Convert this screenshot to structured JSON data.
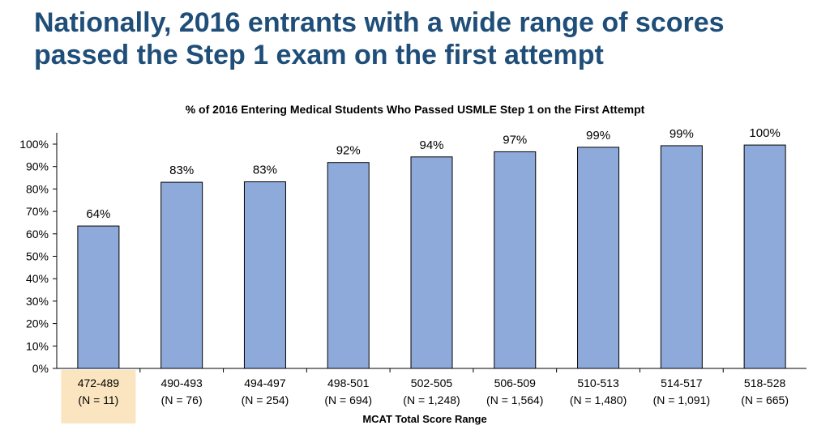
{
  "slide": {
    "headline_line1": "Nationally, 2016 entrants with a wide range of scores",
    "headline_line2": "passed the Step 1 exam on the first attempt"
  },
  "chart_data": {
    "type": "bar",
    "title": "% of 2016 Entering Medical Students Who Passed USMLE Step 1 on the First Attempt",
    "xlabel": "MCAT Total Score Range",
    "ylabel": "",
    "ylim": [
      0,
      100
    ],
    "yticks": [
      "0%",
      "10%",
      "20%",
      "30%",
      "40%",
      "50%",
      "60%",
      "70%",
      "80%",
      "90%",
      "100%"
    ],
    "categories": [
      "472-489",
      "490-493",
      "494-497",
      "498-501",
      "502-505",
      "506-509",
      "510-513",
      "514-517",
      "518-528"
    ],
    "counts": [
      "(N = 11)",
      "(N = 76)",
      "(N = 254)",
      "(N = 694)",
      "(N = 1,248)",
      "(N = 1,564)",
      "(N = 1,480)",
      "(N = 1,091)",
      "(N = 665)"
    ],
    "values": [
      63.5,
      83,
      83.2,
      91.8,
      94.3,
      96.6,
      98.6,
      99.3,
      99.6
    ],
    "data_labels": [
      "64%",
      "83%",
      "83%",
      "92%",
      "94%",
      "97%",
      "99%",
      "99%",
      "100%"
    ],
    "highlighted_category_index": 0,
    "grid": false,
    "colors": {
      "bar": "#8eaadb",
      "bar_border": "#000000",
      "highlight_bg": "#fbe5c0",
      "highlight_text": "#8a7a55",
      "headline": "#1f4e79"
    }
  }
}
